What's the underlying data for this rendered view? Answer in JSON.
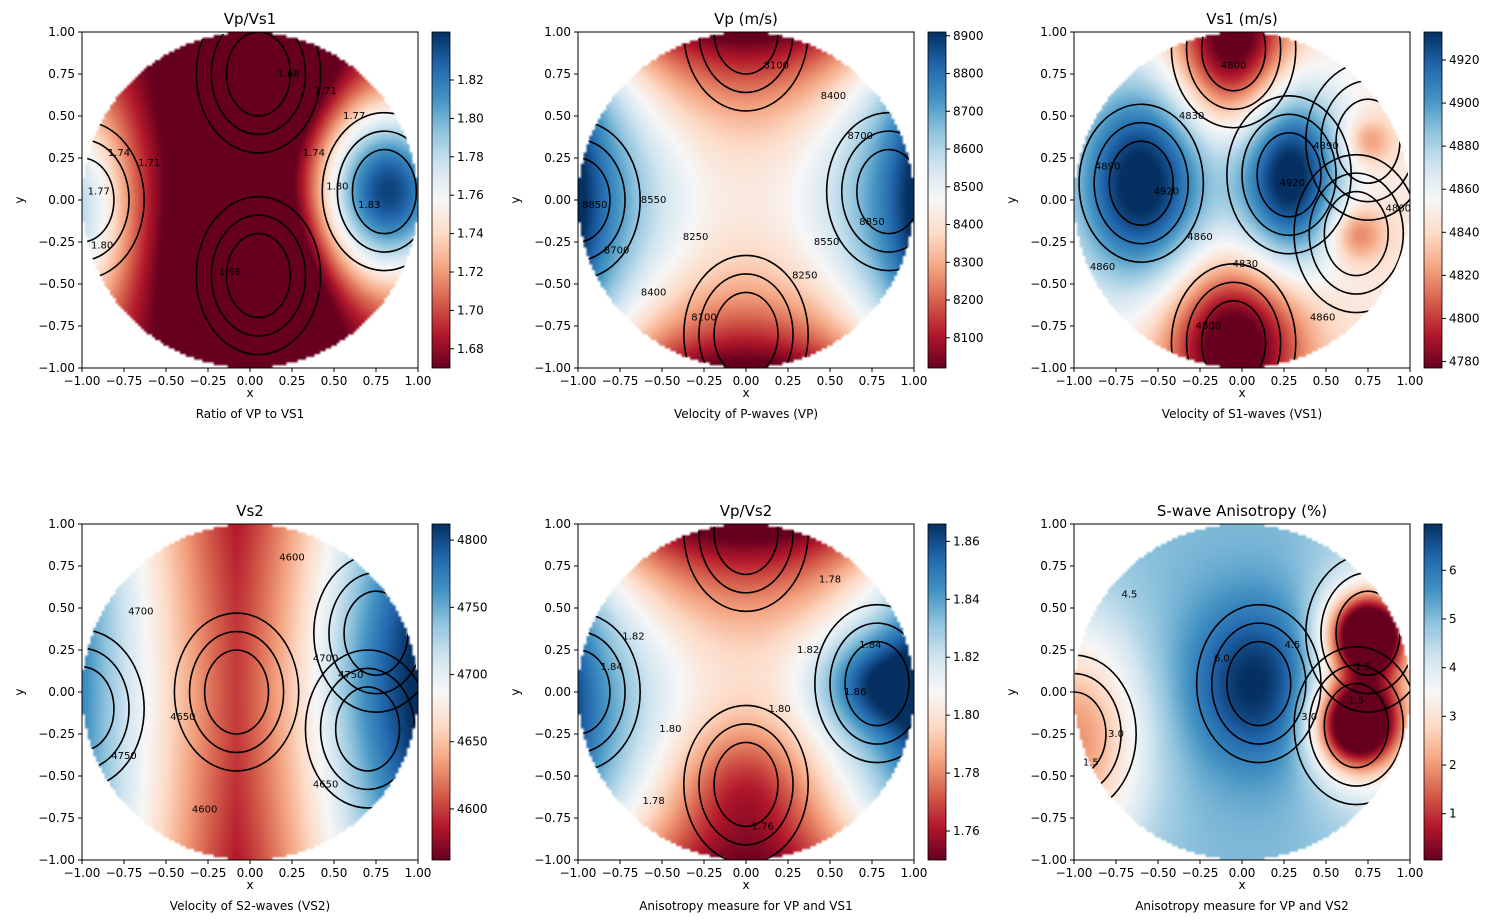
{
  "chart_data": [
    {
      "type": "heatmap",
      "title": "Vp/Vs1",
      "xlabel": "x",
      "ylabel": "y",
      "caption": "Ratio of VP to VS1",
      "xlim": [
        -1,
        1
      ],
      "ylim": [
        -1,
        1
      ],
      "xticks": [
        "−1.00",
        "−0.75",
        "−0.50",
        "−0.25",
        "0.00",
        "0.25",
        "0.50",
        "0.75",
        "1.00"
      ],
      "yticks": [
        "1.00",
        "0.75",
        "0.50",
        "0.25",
        "0.00",
        "−0.25",
        "−0.50",
        "−0.75",
        "−1.00"
      ],
      "colorbar": {
        "range": [
          1.67,
          1.845
        ],
        "ticks": [
          1.68,
          1.7,
          1.72,
          1.74,
          1.76,
          1.78,
          1.8,
          1.82
        ],
        "tick_labels": [
          "1.68",
          "1.70",
          "1.72",
          "1.74",
          "1.76",
          "1.78",
          "1.80",
          "1.82"
        ]
      },
      "colormap": "RdBu",
      "features": [
        {
          "x": 0.8,
          "y": 0.05,
          "value": 1.845
        },
        {
          "x": -1.0,
          "y": 0.0,
          "value": 1.8
        },
        {
          "x": 0.05,
          "y": -0.45,
          "value": 1.67
        },
        {
          "x": 0.05,
          "y": 0.75,
          "value": 1.67
        }
      ],
      "contour_labels": [
        {
          "text": "1.68",
          "x": 0.23,
          "y": 0.75
        },
        {
          "text": "1.71",
          "x": 0.45,
          "y": 0.65
        },
        {
          "text": "1.77",
          "x": 0.62,
          "y": 0.5
        },
        {
          "text": "1.74",
          "x": 0.38,
          "y": 0.28
        },
        {
          "text": "1.80",
          "x": 0.52,
          "y": 0.08
        },
        {
          "text": "1.83",
          "x": 0.71,
          "y": -0.03
        },
        {
          "text": "1.74",
          "x": -0.78,
          "y": 0.28
        },
        {
          "text": "1.71",
          "x": -0.6,
          "y": 0.22
        },
        {
          "text": "1.77",
          "x": -0.9,
          "y": 0.05
        },
        {
          "text": "1.80",
          "x": -0.88,
          "y": -0.27
        },
        {
          "text": "1.68",
          "x": -0.12,
          "y": -0.43
        }
      ]
    },
    {
      "type": "heatmap",
      "title": "Vp (m/s)",
      "xlabel": "x",
      "ylabel": "y",
      "caption": "Velocity of P-waves (VP)",
      "xlim": [
        -1,
        1
      ],
      "ylim": [
        -1,
        1
      ],
      "xticks": [
        "−1.00",
        "−0.75",
        "−0.50",
        "−0.25",
        "0.00",
        "0.25",
        "0.50",
        "0.75",
        "1.00"
      ],
      "yticks": [
        "1.00",
        "0.75",
        "0.50",
        "0.25",
        "0.00",
        "−0.25",
        "−0.50",
        "−0.75",
        "−1.00"
      ],
      "colorbar": {
        "range": [
          8020,
          8910
        ],
        "ticks": [
          8100,
          8200,
          8300,
          8400,
          8500,
          8600,
          8700,
          8800,
          8900
        ],
        "tick_labels": [
          "8100",
          "8200",
          "8300",
          "8400",
          "8500",
          "8600",
          "8700",
          "8800",
          "8900"
        ]
      },
      "colormap": "RdBu",
      "features": [
        {
          "x": 0.85,
          "y": 0.05,
          "value": 8910
        },
        {
          "x": -1.0,
          "y": 0.0,
          "value": 8900
        },
        {
          "x": 0.0,
          "y": -0.8,
          "value": 8020
        },
        {
          "x": 0.0,
          "y": 1.0,
          "value": 8050
        }
      ],
      "contour_labels": [
        {
          "text": "8100",
          "x": 0.18,
          "y": 0.8
        },
        {
          "text": "8400",
          "x": 0.52,
          "y": 0.62
        },
        {
          "text": "8700",
          "x": 0.68,
          "y": 0.38
        },
        {
          "text": "8850",
          "x": 0.75,
          "y": -0.13
        },
        {
          "text": "8550",
          "x": 0.48,
          "y": -0.25
        },
        {
          "text": "8250",
          "x": 0.35,
          "y": -0.45
        },
        {
          "text": "8850",
          "x": -0.9,
          "y": -0.03
        },
        {
          "text": "8550",
          "x": -0.55,
          "y": 0.0
        },
        {
          "text": "8700",
          "x": -0.77,
          "y": -0.3
        },
        {
          "text": "8250",
          "x": -0.3,
          "y": -0.22
        },
        {
          "text": "8400",
          "x": -0.55,
          "y": -0.55
        },
        {
          "text": "8100",
          "x": -0.25,
          "y": -0.7
        }
      ]
    },
    {
      "type": "heatmap",
      "title": "Vs1 (m/s)",
      "xlabel": "x",
      "ylabel": "y",
      "caption": "Velocity of S1-waves (VS1)",
      "xlim": [
        -1,
        1
      ],
      "ylim": [
        -1,
        1
      ],
      "xticks": [
        "−1.00",
        "−0.75",
        "−0.50",
        "−0.25",
        "0.00",
        "0.25",
        "0.50",
        "0.75",
        "1.00"
      ],
      "yticks": [
        "1.00",
        "0.75",
        "0.50",
        "0.25",
        "0.00",
        "−0.25",
        "−0.50",
        "−0.75",
        "−1.00"
      ],
      "colorbar": {
        "range": [
          4777,
          4933
        ],
        "ticks": [
          4780,
          4800,
          4820,
          4840,
          4860,
          4880,
          4900,
          4920
        ],
        "tick_labels": [
          "4780",
          "4800",
          "4820",
          "4840",
          "4860",
          "4880",
          "4900",
          "4920"
        ]
      },
      "colormap": "RdBu",
      "features": [
        {
          "x": -0.6,
          "y": 0.1,
          "value": 4933
        },
        {
          "x": 0.28,
          "y": 0.15,
          "value": 4930
        },
        {
          "x": -0.05,
          "y": 0.9,
          "value": 4777
        },
        {
          "x": -0.05,
          "y": -0.85,
          "value": 4777
        },
        {
          "x": 0.68,
          "y": -0.2,
          "value": 4825
        },
        {
          "x": 0.75,
          "y": 0.35,
          "value": 4830
        }
      ],
      "contour_labels": [
        {
          "text": "4800",
          "x": -0.05,
          "y": 0.8
        },
        {
          "text": "4830",
          "x": -0.3,
          "y": 0.5
        },
        {
          "text": "4890",
          "x": -0.8,
          "y": 0.2
        },
        {
          "text": "4920",
          "x": -0.45,
          "y": 0.05
        },
        {
          "text": "4890",
          "x": 0.5,
          "y": 0.32
        },
        {
          "text": "4920",
          "x": 0.3,
          "y": 0.1
        },
        {
          "text": "4860",
          "x": 0.93,
          "y": -0.05
        },
        {
          "text": "4860",
          "x": -0.25,
          "y": -0.22
        },
        {
          "text": "4830",
          "x": 0.02,
          "y": -0.38
        },
        {
          "text": "4860",
          "x": -0.83,
          "y": -0.4
        },
        {
          "text": "4860",
          "x": 0.48,
          "y": -0.7
        },
        {
          "text": "4800",
          "x": -0.2,
          "y": -0.75
        }
      ]
    },
    {
      "type": "heatmap",
      "title": "Vs2",
      "xlabel": "x",
      "ylabel": "y",
      "caption": "Velocity of S2-waves (VS2)",
      "xlim": [
        -1,
        1
      ],
      "ylim": [
        -1,
        1
      ],
      "xticks": [
        "−1.00",
        "−0.75",
        "−0.50",
        "−0.25",
        "0.00",
        "0.25",
        "0.50",
        "0.75",
        "1.00"
      ],
      "yticks": [
        "1.00",
        "0.75",
        "0.50",
        "0.25",
        "0.00",
        "−0.25",
        "−0.50",
        "−0.75",
        "−1.00"
      ],
      "colorbar": {
        "range": [
          4562,
          4812
        ],
        "ticks": [
          4600,
          4650,
          4700,
          4750,
          4800
        ],
        "tick_labels": [
          "4600",
          "4650",
          "4700",
          "4750",
          "4800"
        ]
      },
      "colormap": "RdBu",
      "features": [
        {
          "x": 0.75,
          "y": 0.35,
          "value": 4812
        },
        {
          "x": 0.7,
          "y": -0.22,
          "value": 4805
        },
        {
          "x": -1.0,
          "y": -0.1,
          "value": 4800
        },
        {
          "x": -0.08,
          "y": 0.0,
          "value": 4562
        }
      ],
      "contour_labels": [
        {
          "text": "4600",
          "x": 0.25,
          "y": 0.8
        },
        {
          "text": "4700",
          "x": -0.65,
          "y": 0.48
        },
        {
          "text": "4700",
          "x": 0.45,
          "y": 0.2
        },
        {
          "text": "4750",
          "x": 0.6,
          "y": 0.1
        },
        {
          "text": "4650",
          "x": -0.4,
          "y": -0.15
        },
        {
          "text": "4750",
          "x": -0.75,
          "y": -0.38
        },
        {
          "text": "4650",
          "x": 0.45,
          "y": -0.55
        },
        {
          "text": "4600",
          "x": -0.27,
          "y": -0.7
        }
      ]
    },
    {
      "type": "heatmap",
      "title": "Vp/Vs2",
      "xlabel": "x",
      "ylabel": "y",
      "caption": "Anisotropy measure for VP and VS1",
      "xlim": [
        -1,
        1
      ],
      "ylim": [
        -1,
        1
      ],
      "xticks": [
        "−1.00",
        "−0.75",
        "−0.50",
        "−0.25",
        "0.00",
        "0.25",
        "0.50",
        "0.75",
        "1.00"
      ],
      "yticks": [
        "1.00",
        "0.75",
        "0.50",
        "0.25",
        "0.00",
        "−0.25",
        "−0.50",
        "−0.75",
        "−1.00"
      ],
      "colorbar": {
        "range": [
          1.75,
          1.866
        ],
        "ticks": [
          1.76,
          1.78,
          1.8,
          1.82,
          1.84,
          1.86
        ],
        "tick_labels": [
          "1.76",
          "1.78",
          "1.80",
          "1.82",
          "1.84",
          "1.86"
        ]
      },
      "colormap": "RdBu",
      "features": [
        {
          "x": 0.78,
          "y": 0.05,
          "value": 1.866
        },
        {
          "x": -1.0,
          "y": 0.0,
          "value": 1.86
        },
        {
          "x": 0.0,
          "y": -0.55,
          "value": 1.75
        },
        {
          "x": 0.0,
          "y": 0.95,
          "value": 1.76
        }
      ],
      "contour_labels": [
        {
          "text": "1.78",
          "x": 0.5,
          "y": 0.67
        },
        {
          "text": "1.82",
          "x": -0.67,
          "y": 0.33
        },
        {
          "text": "1.84",
          "x": -0.8,
          "y": 0.15
        },
        {
          "text": "1.82",
          "x": 0.37,
          "y": 0.25
        },
        {
          "text": "1.84",
          "x": 0.74,
          "y": 0.28
        },
        {
          "text": "1.86",
          "x": 0.65,
          "y": 0.0
        },
        {
          "text": "1.80",
          "x": 0.2,
          "y": -0.1
        },
        {
          "text": "1.80",
          "x": -0.45,
          "y": -0.22
        },
        {
          "text": "1.78",
          "x": -0.55,
          "y": -0.65
        },
        {
          "text": "1.76",
          "x": 0.1,
          "y": -0.8
        }
      ]
    },
    {
      "type": "heatmap",
      "title": "S-wave Anisotropy (%)",
      "xlabel": "x",
      "ylabel": "y",
      "caption": "Anisotropy measure for VP and VS2",
      "xlim": [
        -1,
        1
      ],
      "ylim": [
        -1,
        1
      ],
      "xticks": [
        "−1.00",
        "−0.75",
        "−0.50",
        "−0.25",
        "0.00",
        "0.25",
        "0.50",
        "0.75",
        "1.00"
      ],
      "yticks": [
        "1.00",
        "0.75",
        "0.50",
        "0.25",
        "0.00",
        "−0.25",
        "−0.50",
        "−0.75",
        "−1.00"
      ],
      "colorbar": {
        "range": [
          0.05,
          6.95
        ],
        "ticks": [
          1,
          2,
          3,
          4,
          5,
          6
        ],
        "tick_labels": [
          "1",
          "2",
          "3",
          "4",
          "5",
          "6"
        ]
      },
      "colormap": "RdBu",
      "features": [
        {
          "x": 0.1,
          "y": 0.05,
          "value": 6.95
        },
        {
          "x": 0.75,
          "y": 0.35,
          "value": 0.05
        },
        {
          "x": 0.68,
          "y": -0.2,
          "value": 0.2
        },
        {
          "x": -1.0,
          "y": -0.25,
          "value": 1.2
        }
      ],
      "contour_labels": [
        {
          "text": "4.5",
          "x": -0.67,
          "y": 0.58
        },
        {
          "text": "6.0",
          "x": -0.12,
          "y": 0.2
        },
        {
          "text": "4.5",
          "x": 0.3,
          "y": 0.28
        },
        {
          "text": "1.5",
          "x": 0.72,
          "y": 0.15
        },
        {
          "text": "1.5",
          "x": 0.68,
          "y": -0.05
        },
        {
          "text": "3.0",
          "x": 0.4,
          "y": -0.15
        },
        {
          "text": "3.0",
          "x": -0.75,
          "y": -0.25
        },
        {
          "text": "1.5",
          "x": -0.9,
          "y": -0.42
        }
      ]
    }
  ]
}
